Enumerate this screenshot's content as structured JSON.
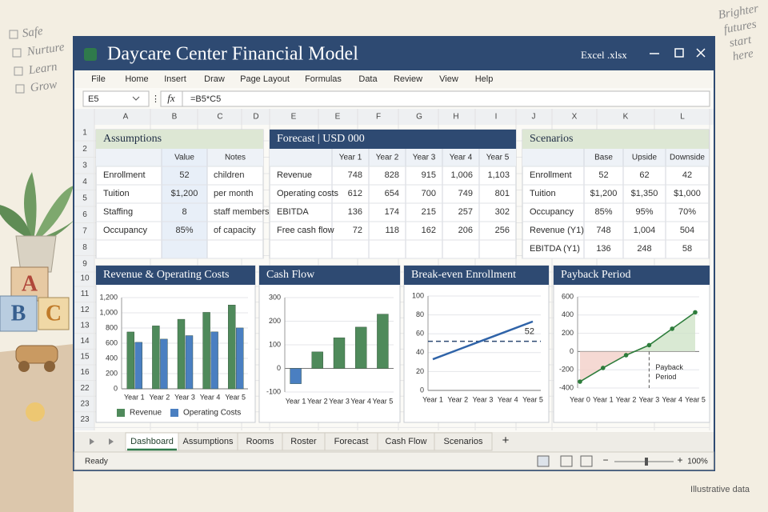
{
  "decor": {
    "checklist": [
      "Safe",
      "Nurture",
      "Learn",
      "Grow"
    ],
    "tagline": [
      "Brighter",
      "futures",
      "start",
      "here"
    ],
    "blocks": [
      "A",
      "B",
      "C"
    ],
    "footnote": "Illustrative data"
  },
  "window": {
    "title": "Daycare Center Financial Model",
    "file_type": "Excel .xlsx"
  },
  "menu": [
    "File",
    "Home",
    "Insert",
    "Draw",
    "Page Layout",
    "Formulas",
    "Data",
    "Review",
    "View",
    "Help"
  ],
  "formula_bar": {
    "cell": "E5",
    "fx": "fx",
    "formula": "=B5*C5"
  },
  "columns": [
    "A",
    "B",
    "C",
    "D",
    "E",
    "E",
    "F",
    "G",
    "H",
    "I",
    "J",
    "X",
    "K",
    "L"
  ],
  "rows": [
    "1",
    "2",
    "3",
    "4",
    "5",
    "6",
    "7",
    "8",
    "9",
    "10",
    "11",
    "12",
    "13",
    "14",
    "15",
    "16",
    "22",
    "23",
    "23"
  ],
  "tables": [
    {
      "title": "Assumptions",
      "headers": [
        "Value",
        "Notes"
      ],
      "rows": [
        [
          "Enrollment",
          "52",
          "children"
        ],
        [
          "Tuition",
          "$1,200",
          "per month"
        ],
        [
          "Staffing",
          "8",
          "staff members"
        ],
        [
          "Occupancy",
          "85%",
          "of capacity"
        ]
      ]
    },
    {
      "title": "Forecast | USD 000",
      "headers": [
        "Year 1",
        "Year 2",
        "Year 3",
        "Year 4",
        "Year 5"
      ],
      "rows": [
        [
          "Revenue",
          "748",
          "828",
          "915",
          "1,006",
          "1,103"
        ],
        [
          "Operating costs",
          "612",
          "654",
          "700",
          "749",
          "801"
        ],
        [
          "EBITDA",
          "136",
          "174",
          "215",
          "257",
          "302"
        ],
        [
          "Free cash flow",
          "72",
          "118",
          "162",
          "206",
          "256"
        ]
      ]
    },
    {
      "title": "Scenarios",
      "headers": [
        "Base",
        "Upside",
        "Downside"
      ],
      "rows": [
        [
          "Enrollment",
          "52",
          "62",
          "42"
        ],
        [
          "Tuition",
          "$1,200",
          "$1,350",
          "$1,000"
        ],
        [
          "Occupancy",
          "85%",
          "95%",
          "70%"
        ],
        [
          "Revenue (Y1)",
          "748",
          "1,004",
          "504"
        ],
        [
          "EBITDA (Y1)",
          "136",
          "248",
          "58"
        ]
      ]
    }
  ],
  "chart_data": [
    {
      "type": "bar",
      "title": "Revenue & Operating Costs",
      "categories": [
        "Year 1",
        "Year 2",
        "Year 3",
        "Year 4",
        "Year 5"
      ],
      "series": [
        {
          "name": "Revenue",
          "color": "#4f8a5b",
          "values": [
            748,
            828,
            915,
            1006,
            1103
          ]
        },
        {
          "name": "Operating Costs",
          "color": "#4a7fc1",
          "values": [
            612,
            654,
            700,
            749,
            801
          ]
        }
      ],
      "ylim": [
        0,
        1200
      ],
      "yticks": [
        0,
        200,
        400,
        600,
        800,
        {
          "value": 1000,
          "label": "1,000"
        },
        {
          "value": 1200,
          "label": "1,200"
        }
      ]
    },
    {
      "type": "bar",
      "title": "Cash Flow",
      "categories": [
        "Year 1",
        "Year 2",
        "Year 3",
        "Year 4",
        "Year 5"
      ],
      "values": [
        -65,
        70,
        130,
        175,
        230
      ],
      "colors": [
        "#4a7fc1",
        "#4f8a5b",
        "#4f8a5b",
        "#4f8a5b",
        "#4f8a5b"
      ],
      "ylim": [
        -100,
        300
      ],
      "yticks": [
        -100,
        0,
        100,
        200,
        300
      ]
    },
    {
      "type": "line",
      "title": "Break-even Enrollment",
      "categories": [
        "Year 1",
        "Year 2",
        "Year 3",
        "Year 4",
        "Year 5"
      ],
      "values": [
        33,
        43,
        53,
        63,
        73
      ],
      "color": "#2f63a8",
      "ylim": [
        0,
        100
      ],
      "yticks": [
        0,
        20,
        40,
        60,
        80,
        100
      ],
      "threshold": 52
    },
    {
      "type": "line",
      "title": "Payback Period",
      "categories": [
        "Year 0",
        "Year 1",
        "Year 2",
        "Year 3",
        "Year 4",
        "Year 5"
      ],
      "values": [
        -330,
        -180,
        -40,
        70,
        250,
        430
      ],
      "color": "#2e7d3c",
      "markers": true,
      "fill_areas": true,
      "ylim": [
        -400,
        600
      ],
      "yticks": [
        -400,
        -200,
        0,
        200,
        400,
        600
      ],
      "annotation": [
        "Payback",
        "Period"
      ]
    }
  ],
  "tabs": [
    "Dashboard",
    "Assumptions",
    "Rooms",
    "Roster",
    "Forecast",
    "Cash Flow",
    "Scenarios"
  ],
  "add_tab": "+",
  "status": {
    "text": "Ready",
    "zoom_minus": "−",
    "zoom_plus": "+",
    "zoom": "100%"
  }
}
